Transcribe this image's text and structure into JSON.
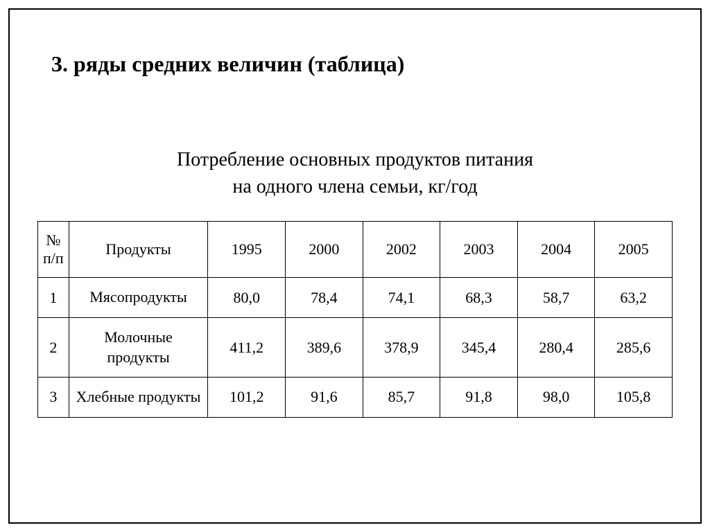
{
  "main_title": "3. ряды средних величин (таблица)",
  "table_title_line1": "Потребление основных продуктов питания",
  "table_title_line2": "на одного члена семьи, кг/год",
  "table": {
    "columns": [
      "№ п/п",
      "Продукты",
      "1995",
      "2000",
      "2002",
      "2003",
      "2004",
      "2005"
    ],
    "rows": [
      [
        "1",
        "Мясопродукты",
        "80,0",
        "78,4",
        "74,1",
        "68,3",
        "58,7",
        "63,2"
      ],
      [
        "2",
        "Молочные продукты",
        "411,2",
        "389,6",
        "378,9",
        "345,4",
        "280,4",
        "285,6"
      ],
      [
        "3",
        "Хлебные продукты",
        "101,2",
        "91,6",
        "85,7",
        "91,8",
        "98,0",
        "105,8"
      ]
    ],
    "col_widths": [
      "40px",
      "180px",
      "100px",
      "100px",
      "100px",
      "100px",
      "100px",
      "100px"
    ],
    "border_color": "#000000",
    "background_color": "#ffffff",
    "font_size": 22,
    "font_family": "Times New Roman"
  },
  "colors": {
    "text": "#000000",
    "background": "#ffffff",
    "border": "#000000"
  }
}
